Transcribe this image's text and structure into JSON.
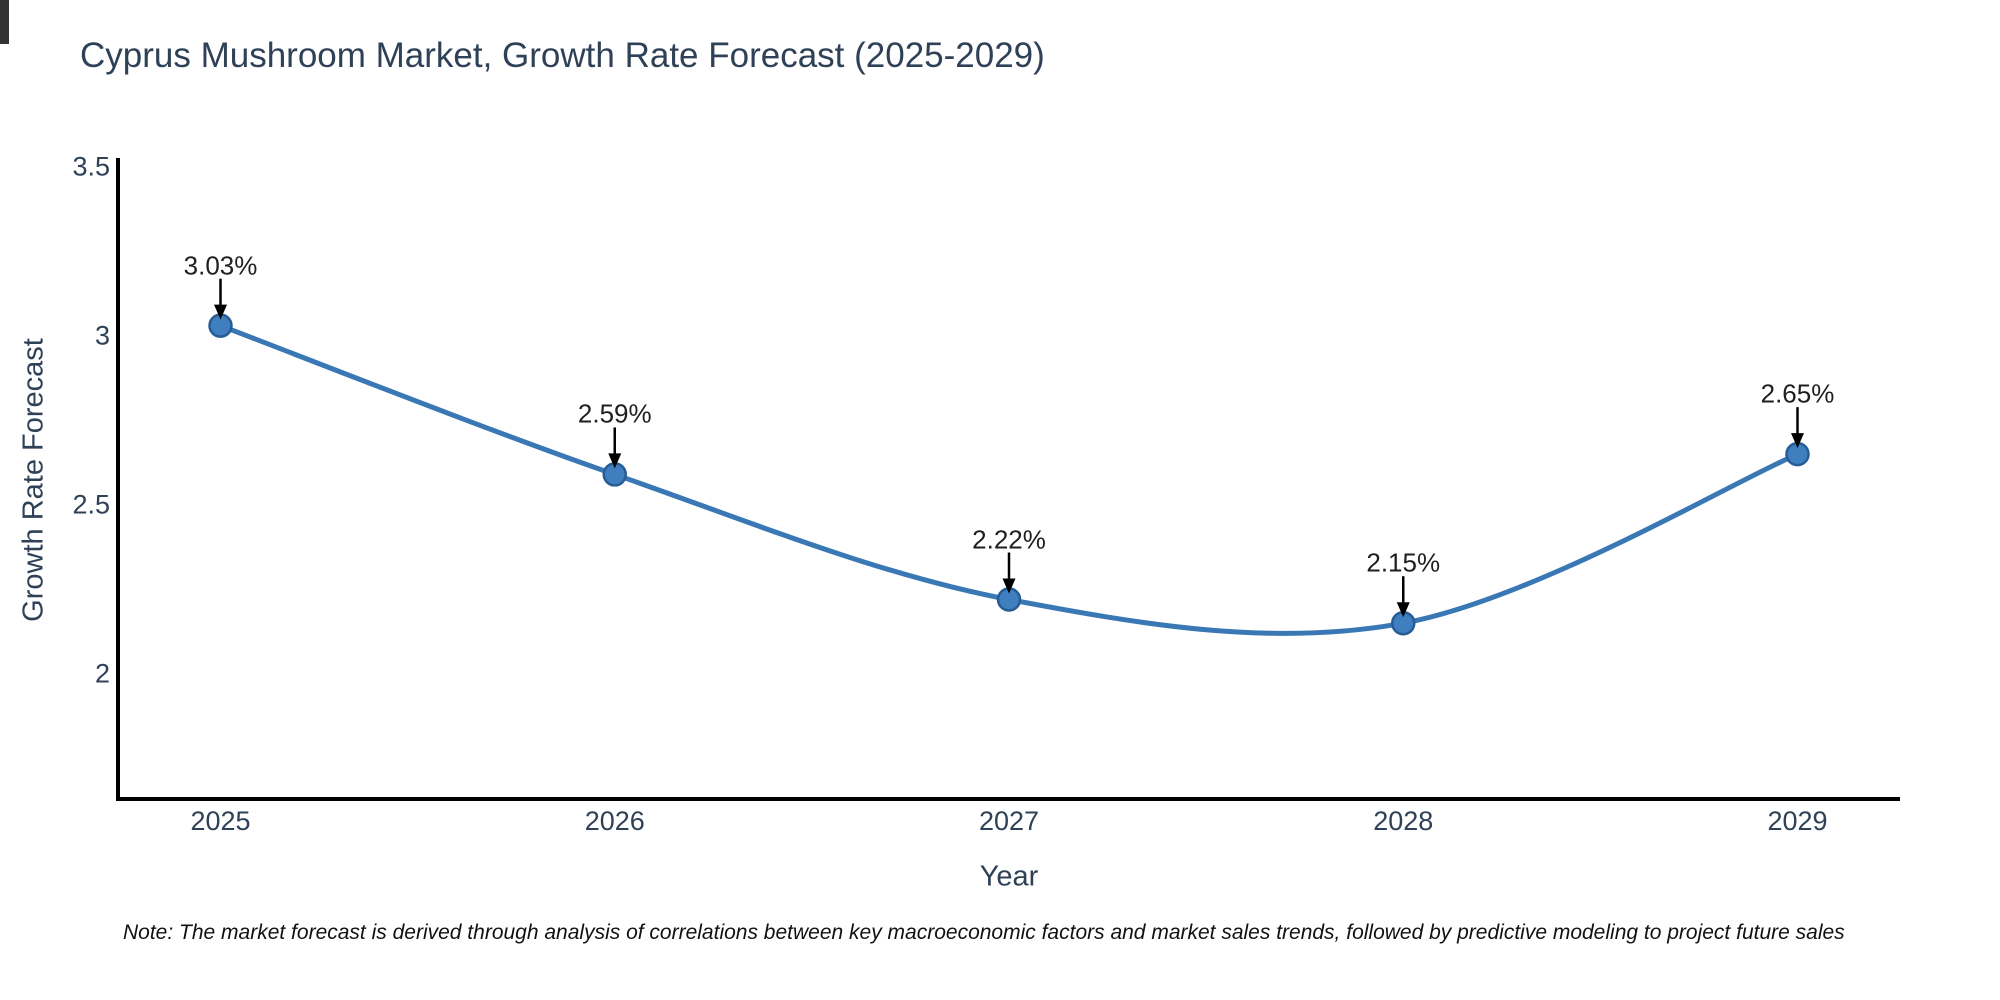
{
  "chart_data": {
    "type": "line",
    "line_shape": "spline",
    "title": "Cyprus Mushroom Market, Growth Rate Forecast (2025-2029)",
    "xlabel": "Year",
    "ylabel": "Growth Rate Forecast",
    "note": "Note: The market forecast is derived through analysis of correlations between key macroeconomic factors and market sales trends, followed by predictive modeling to project future sales",
    "x": [
      2025,
      2026,
      2027,
      2028,
      2029
    ],
    "series": [
      {
        "name": "Growth Rate Forecast",
        "values": [
          3.03,
          2.59,
          2.22,
          2.15,
          2.65
        ]
      }
    ],
    "point_labels": [
      "3.03%",
      "2.59%",
      "2.22%",
      "2.15%",
      "2.65%"
    ],
    "x_tick_labels": [
      "2025",
      "2026",
      "2027",
      "2028",
      "2029"
    ],
    "y_ticks": [
      3.5,
      3,
      2.5,
      2
    ],
    "y_tick_labels": [
      "3.5",
      "3",
      "2.5",
      "2"
    ],
    "xlim": [
      2024.74,
      2029.26
    ],
    "ylim": [
      1.63,
      3.52
    ],
    "grid": false,
    "legend": "none",
    "colors": {
      "line": "#3a78b5",
      "marker": "#3f7ebf",
      "marker_edge": "#255d94",
      "axis": "#000000",
      "tick_text": "#2f4157",
      "title_text": "#2f4157",
      "annotation_text": "#1f1f1f",
      "arrow": "#000000",
      "background": "#ffffff"
    }
  }
}
